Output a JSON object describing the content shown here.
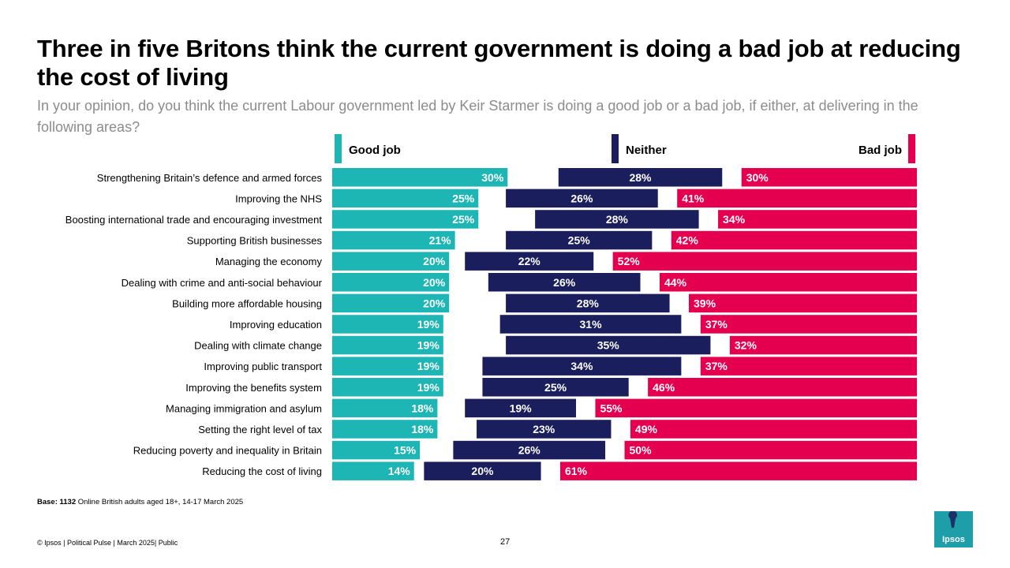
{
  "title": "Three in five Britons think the current government is doing a bad job at reducing the cost of living",
  "subtitle": "In your opinion, do you think the current Labour government led by Keir Starmer is doing a good job or a bad job, if either, at delivering in the following areas?",
  "base_label": "Base:",
  "base_value": "1132",
  "base_text": "Online British adults aged 18+, 14-17 March 2025",
  "footer": "© Ipsos | Political Pulse | March 2025| Public",
  "page_number": "27",
  "logo_text": "Ipsos",
  "colors": {
    "good": "#1eb5b5",
    "neither": "#1b1e5c",
    "bad": "#e4004f",
    "logo": "#1e9ea8"
  },
  "chart_data": {
    "type": "bar",
    "orientation": "horizontal",
    "layout": "divergent-three-part",
    "legend": [
      "Good job",
      "Neither",
      "Bad job"
    ],
    "categories": [
      "Strengthening Britain’s defence and armed forces",
      "Improving the NHS",
      "Boosting international trade and encouraging investment",
      "Supporting British businesses",
      "Managing the economy",
      "Dealing with crime and anti-social behaviour",
      "Building more affordable housing",
      "Improving education",
      "Dealing with climate change",
      "Improving public transport",
      "Improving the benefits system",
      "Managing immigration and asylum",
      "Setting the right level of tax",
      "Reducing poverty and inequality in Britain",
      "Reducing the cost of living"
    ],
    "series": [
      {
        "name": "Good job",
        "values": [
          30,
          25,
          25,
          21,
          20,
          20,
          20,
          19,
          19,
          19,
          19,
          18,
          18,
          15,
          14
        ]
      },
      {
        "name": "Neither",
        "values": [
          28,
          26,
          28,
          25,
          22,
          26,
          28,
          31,
          35,
          34,
          25,
          19,
          23,
          26,
          20
        ]
      },
      {
        "name": "Bad job",
        "values": [
          30,
          41,
          34,
          42,
          52,
          44,
          39,
          37,
          32,
          37,
          46,
          55,
          49,
          50,
          61
        ]
      }
    ],
    "value_suffix": "%",
    "xlim": [
      0,
      100
    ]
  }
}
